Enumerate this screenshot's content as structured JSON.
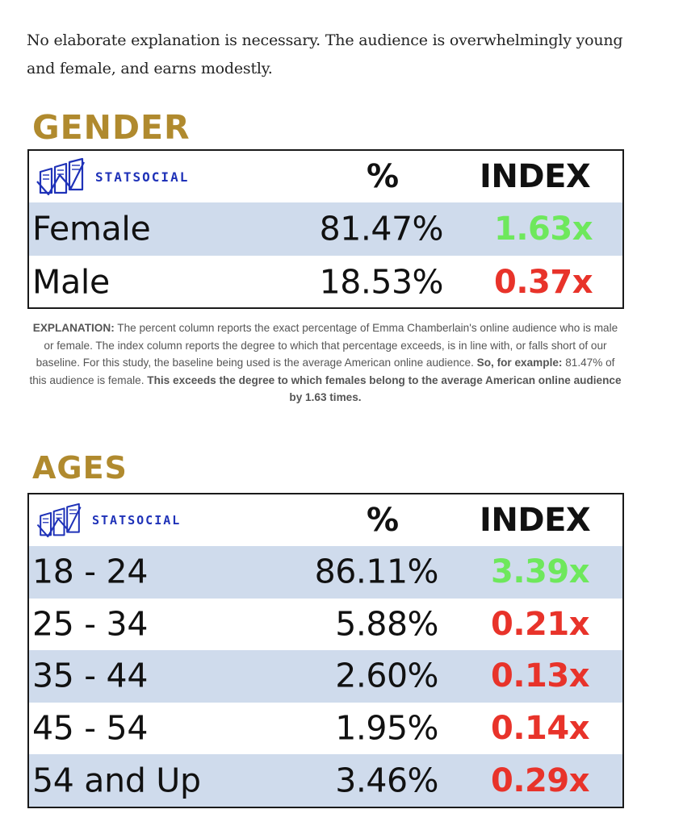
{
  "intro_text": "No elaborate explanation is necessary. The audience is overwhelmingly young and female, and earns modestly.",
  "gender": {
    "title": "GENDER",
    "brand": "STATSOCIAL",
    "pct_header": "%",
    "index_header": "INDEX",
    "rows": [
      {
        "label": "Female",
        "pct": "81.47%",
        "index": "1.63x",
        "index_color": "#6ee85c"
      },
      {
        "label": "Male",
        "pct": "18.53%",
        "index": "0.37x",
        "index_color": "#e8332a"
      }
    ]
  },
  "explanation": {
    "lead": "EXPLANATION:",
    "body": " The percent column reports the exact percentage of Emma Chamberlain's online audience who is male or female. The index column reports the degree to which that percentage exceeds, is in line with, or falls short of our baseline. For this study, the baseline being used is the average American online audience. ",
    "example_lead": "So, for example:",
    "example_body": " 81.47% of this audience is female. ",
    "conclusion": "This exceeds the degree to which females belong to the average American online audience by 1.63 times."
  },
  "ages": {
    "title": "AGES",
    "brand": "STATSOCIAL",
    "pct_header": "%",
    "index_header": "INDEX",
    "rows": [
      {
        "label": "18 - 24",
        "pct": "86.11%",
        "index": "3.39x",
        "index_color": "#6ee85c"
      },
      {
        "label": "25 - 34",
        "pct": "5.88%",
        "index": "0.21x",
        "index_color": "#e8332a"
      },
      {
        "label": "35 - 44",
        "pct": "2.60%",
        "index": "0.13x",
        "index_color": "#e8332a"
      },
      {
        "label": "45 - 54",
        "pct": "1.95%",
        "index": "0.14x",
        "index_color": "#e8332a"
      },
      {
        "label": "54 and Up",
        "pct": "3.46%",
        "index": "0.29x",
        "index_color": "#e8332a"
      }
    ]
  },
  "colors": {
    "title_gold": "#b08a2e",
    "row_shade": "#cfdbec",
    "brand_blue": "#1f32b8",
    "positive_index": "#6ee85c",
    "negative_index": "#e8332a"
  },
  "icons": [
    "statsocial-logo-icon"
  ]
}
